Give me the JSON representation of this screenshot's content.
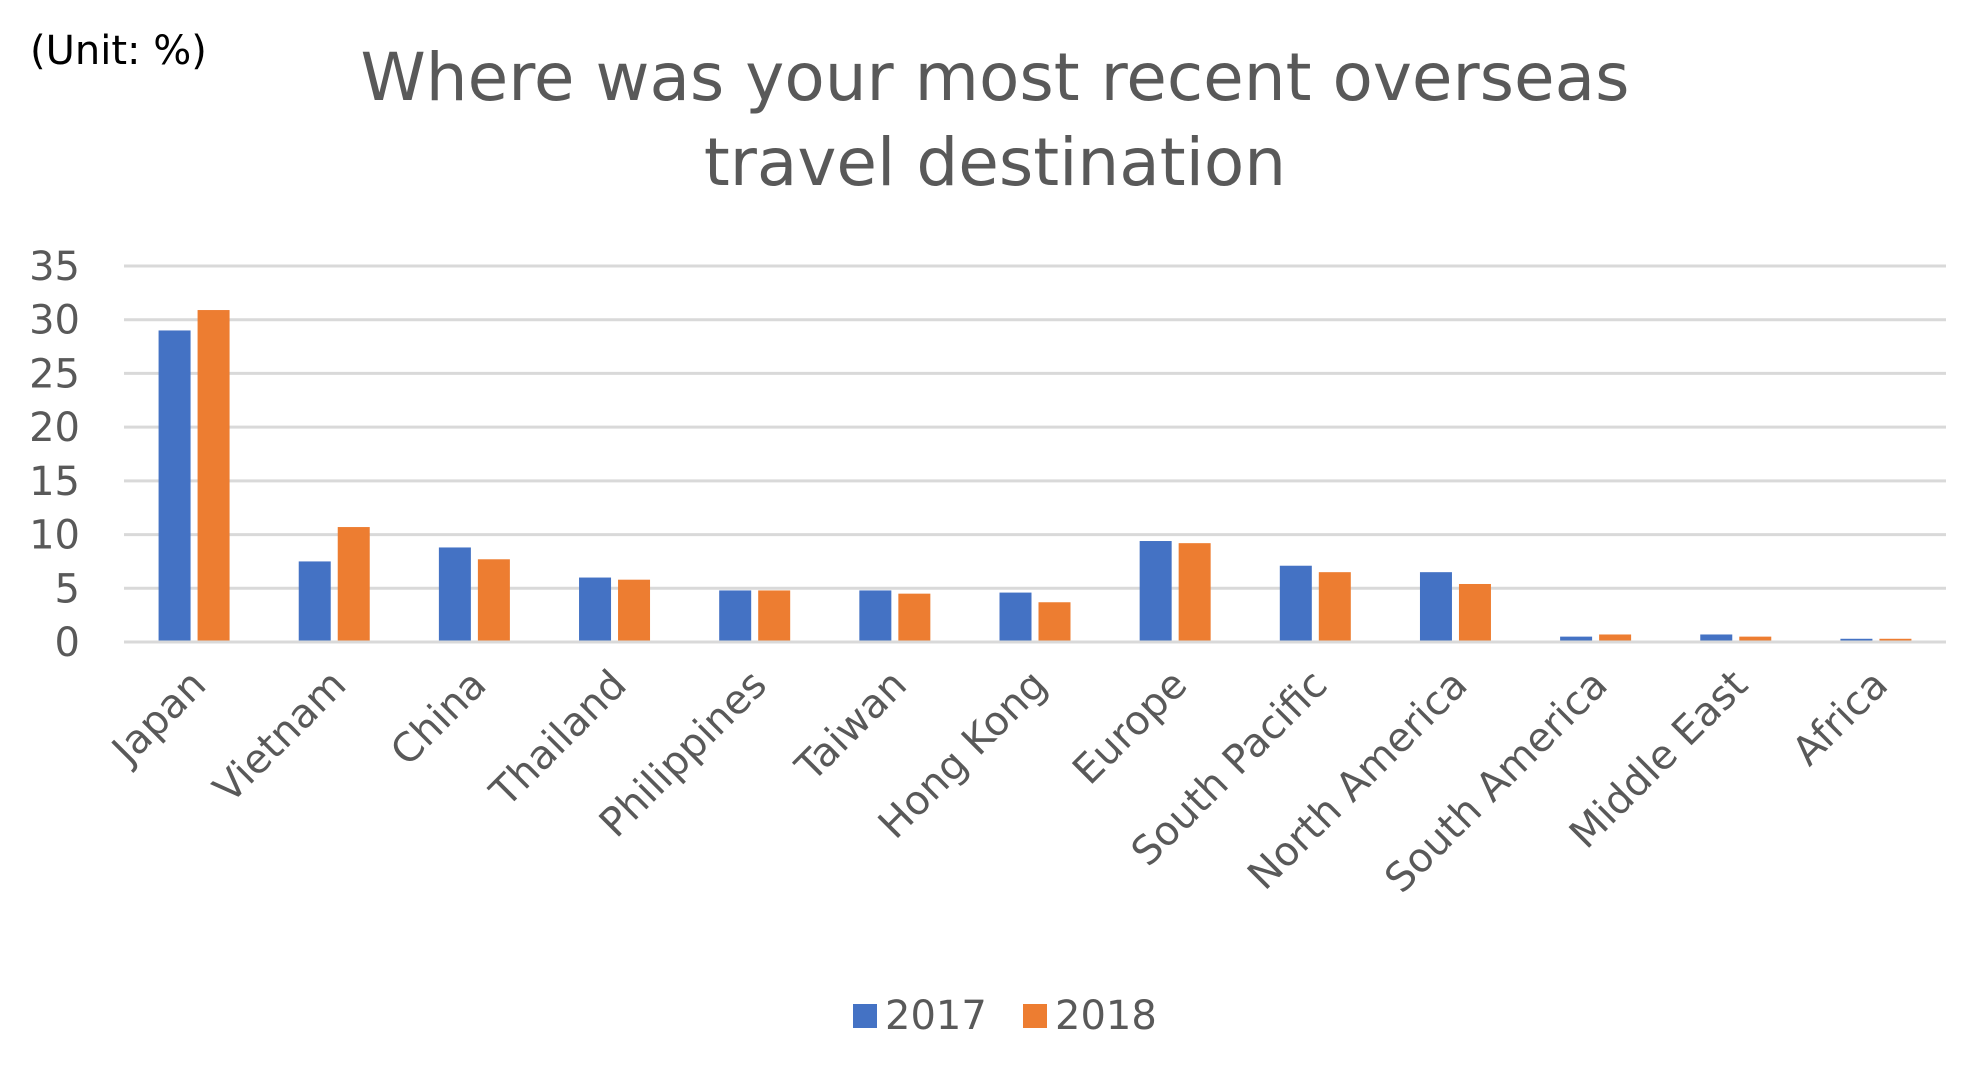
{
  "unit_label": "(Unit: %)",
  "chart_data": {
    "type": "bar",
    "title_lines": [
      "Where was your most recent overseas",
      "travel destination"
    ],
    "xlabel": "",
    "ylabel": "",
    "ylim": [
      0,
      35
    ],
    "yticks": [
      0,
      5,
      10,
      15,
      20,
      25,
      30,
      35
    ],
    "grid": true,
    "legend_position": "bottom",
    "categories": [
      "Japan",
      "Vietnam",
      "China",
      "Thailand",
      "Philippines",
      "Taiwan",
      "Hong Kong",
      "Europe",
      "South Pacific",
      "North America",
      "South America",
      "Middle East",
      "Africa"
    ],
    "series": [
      {
        "name": "2017",
        "color": "#4472C4",
        "values": [
          29.0,
          7.5,
          8.8,
          6.0,
          4.8,
          4.8,
          4.6,
          9.4,
          7.1,
          6.5,
          0.5,
          0.7,
          0.3
        ]
      },
      {
        "name": "2018",
        "color": "#ED7D31",
        "values": [
          30.9,
          10.7,
          7.7,
          5.8,
          4.8,
          4.5,
          3.7,
          9.2,
          6.5,
          5.4,
          0.7,
          0.5,
          0.3
        ]
      }
    ]
  }
}
